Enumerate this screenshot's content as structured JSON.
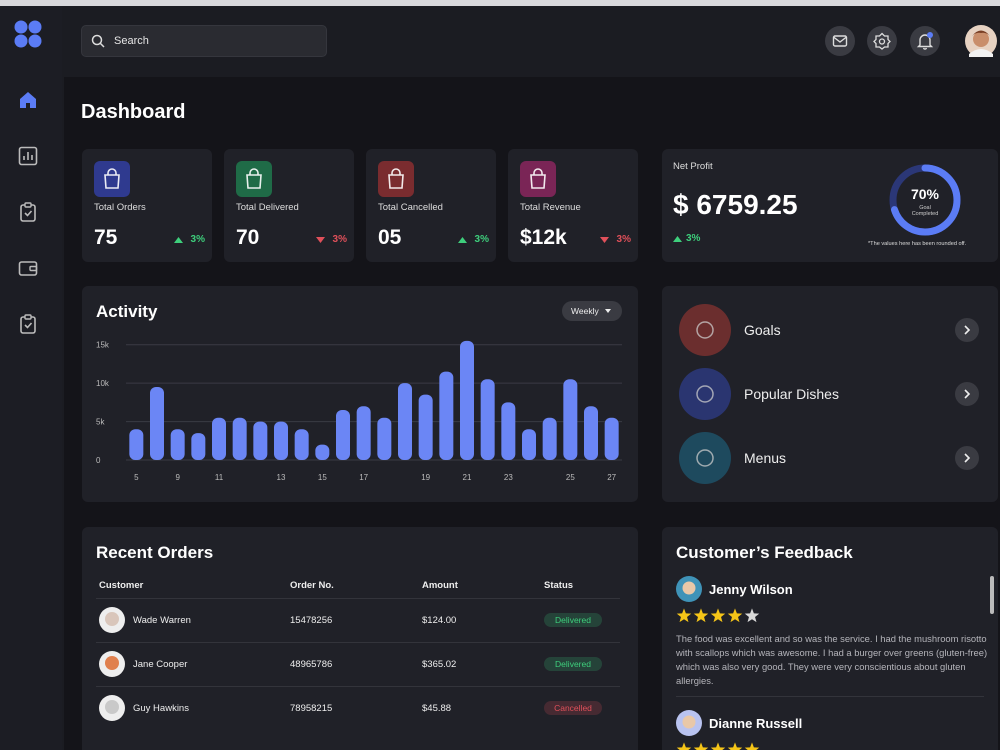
{
  "search": {
    "placeholder": "Search"
  },
  "page_title": "Dashboard",
  "stats": [
    {
      "label": "Total Orders",
      "value": 75,
      "change": "3%",
      "trend": "up",
      "color": "#2f3a8f"
    },
    {
      "label": "Total Delivered",
      "value": 70,
      "change": "3%",
      "trend": "down",
      "color": "#1f6b47"
    },
    {
      "label": "Total Cancelled",
      "value": "05",
      "change": "3%",
      "trend": "up",
      "color": "#7a2c2f"
    },
    {
      "label": "Total Revenue",
      "value": "$12k",
      "change": "3%",
      "trend": "down",
      "color": "#7a2556"
    }
  ],
  "net_profit": {
    "label": "Net Profit",
    "value": "$ 6759.25",
    "change": "3%",
    "trend": "up",
    "goal": {
      "value": 70,
      "value_label": "70%",
      "label": "Goal Completed"
    },
    "note": "*The values here has been rounded off."
  },
  "chart_data": {
    "type": "bar",
    "title": "Activity",
    "filter": "Weekly",
    "categories": [
      "5",
      null,
      "9",
      null,
      "11",
      null,
      null,
      "13",
      null,
      "15",
      null,
      "17",
      null,
      null,
      "19",
      null,
      "21",
      null,
      "23",
      null,
      null,
      "25",
      null,
      "27"
    ],
    "values": [
      4000,
      9500,
      4000,
      3500,
      5500,
      5500,
      5000,
      5000,
      4000,
      2000,
      6500,
      7000,
      5500,
      10000,
      8500,
      11500,
      15500,
      10500,
      7500,
      4000,
      5500,
      10500,
      7000,
      5500
    ],
    "color": "#6b86f5",
    "ylim": [
      0,
      16000
    ],
    "yticks": [
      0,
      {
        "value": 5000,
        "label": "5k"
      },
      {
        "value": 10000,
        "label": "10k"
      },
      {
        "value": 15000,
        "label": "15k"
      }
    ],
    "grid": true
  },
  "shortcuts": [
    {
      "label": "Goals",
      "color": "#6b2e2e"
    },
    {
      "label": "Popular Dishes",
      "color": "#2a3570"
    },
    {
      "label": "Menus",
      "color": "#1e4a5e"
    }
  ],
  "recent_orders": {
    "title": "Recent Orders",
    "columns": [
      "Customer",
      "Order No.",
      "Amount",
      "Status"
    ],
    "rows": [
      [
        "Wade Warren",
        "15478256",
        "$124.00",
        "Delivered"
      ],
      [
        "Jane Cooper",
        "48965786",
        "$365.02",
        "Delivered"
      ],
      [
        "Guy Hawkins",
        "78958215",
        "$45.88",
        "Cancelled"
      ]
    ],
    "status_colors": [
      "#3ecf7c",
      "#3ecf7c",
      "#e0505a"
    ]
  },
  "feedback": {
    "title": "Customer’s Feedback",
    "max_rating": 5,
    "reviews": [
      {
        "name": "Jenny Wilson",
        "rating": 4,
        "text": "The food was excellent and so was the service.  I had the mushroom risotto with scallops which was awesome. I had a burger over greens (gluten-free) which was also very good. They were very conscientious about gluten allergies."
      },
      {
        "name": "Dianne Russell",
        "rating": 5
      }
    ]
  }
}
